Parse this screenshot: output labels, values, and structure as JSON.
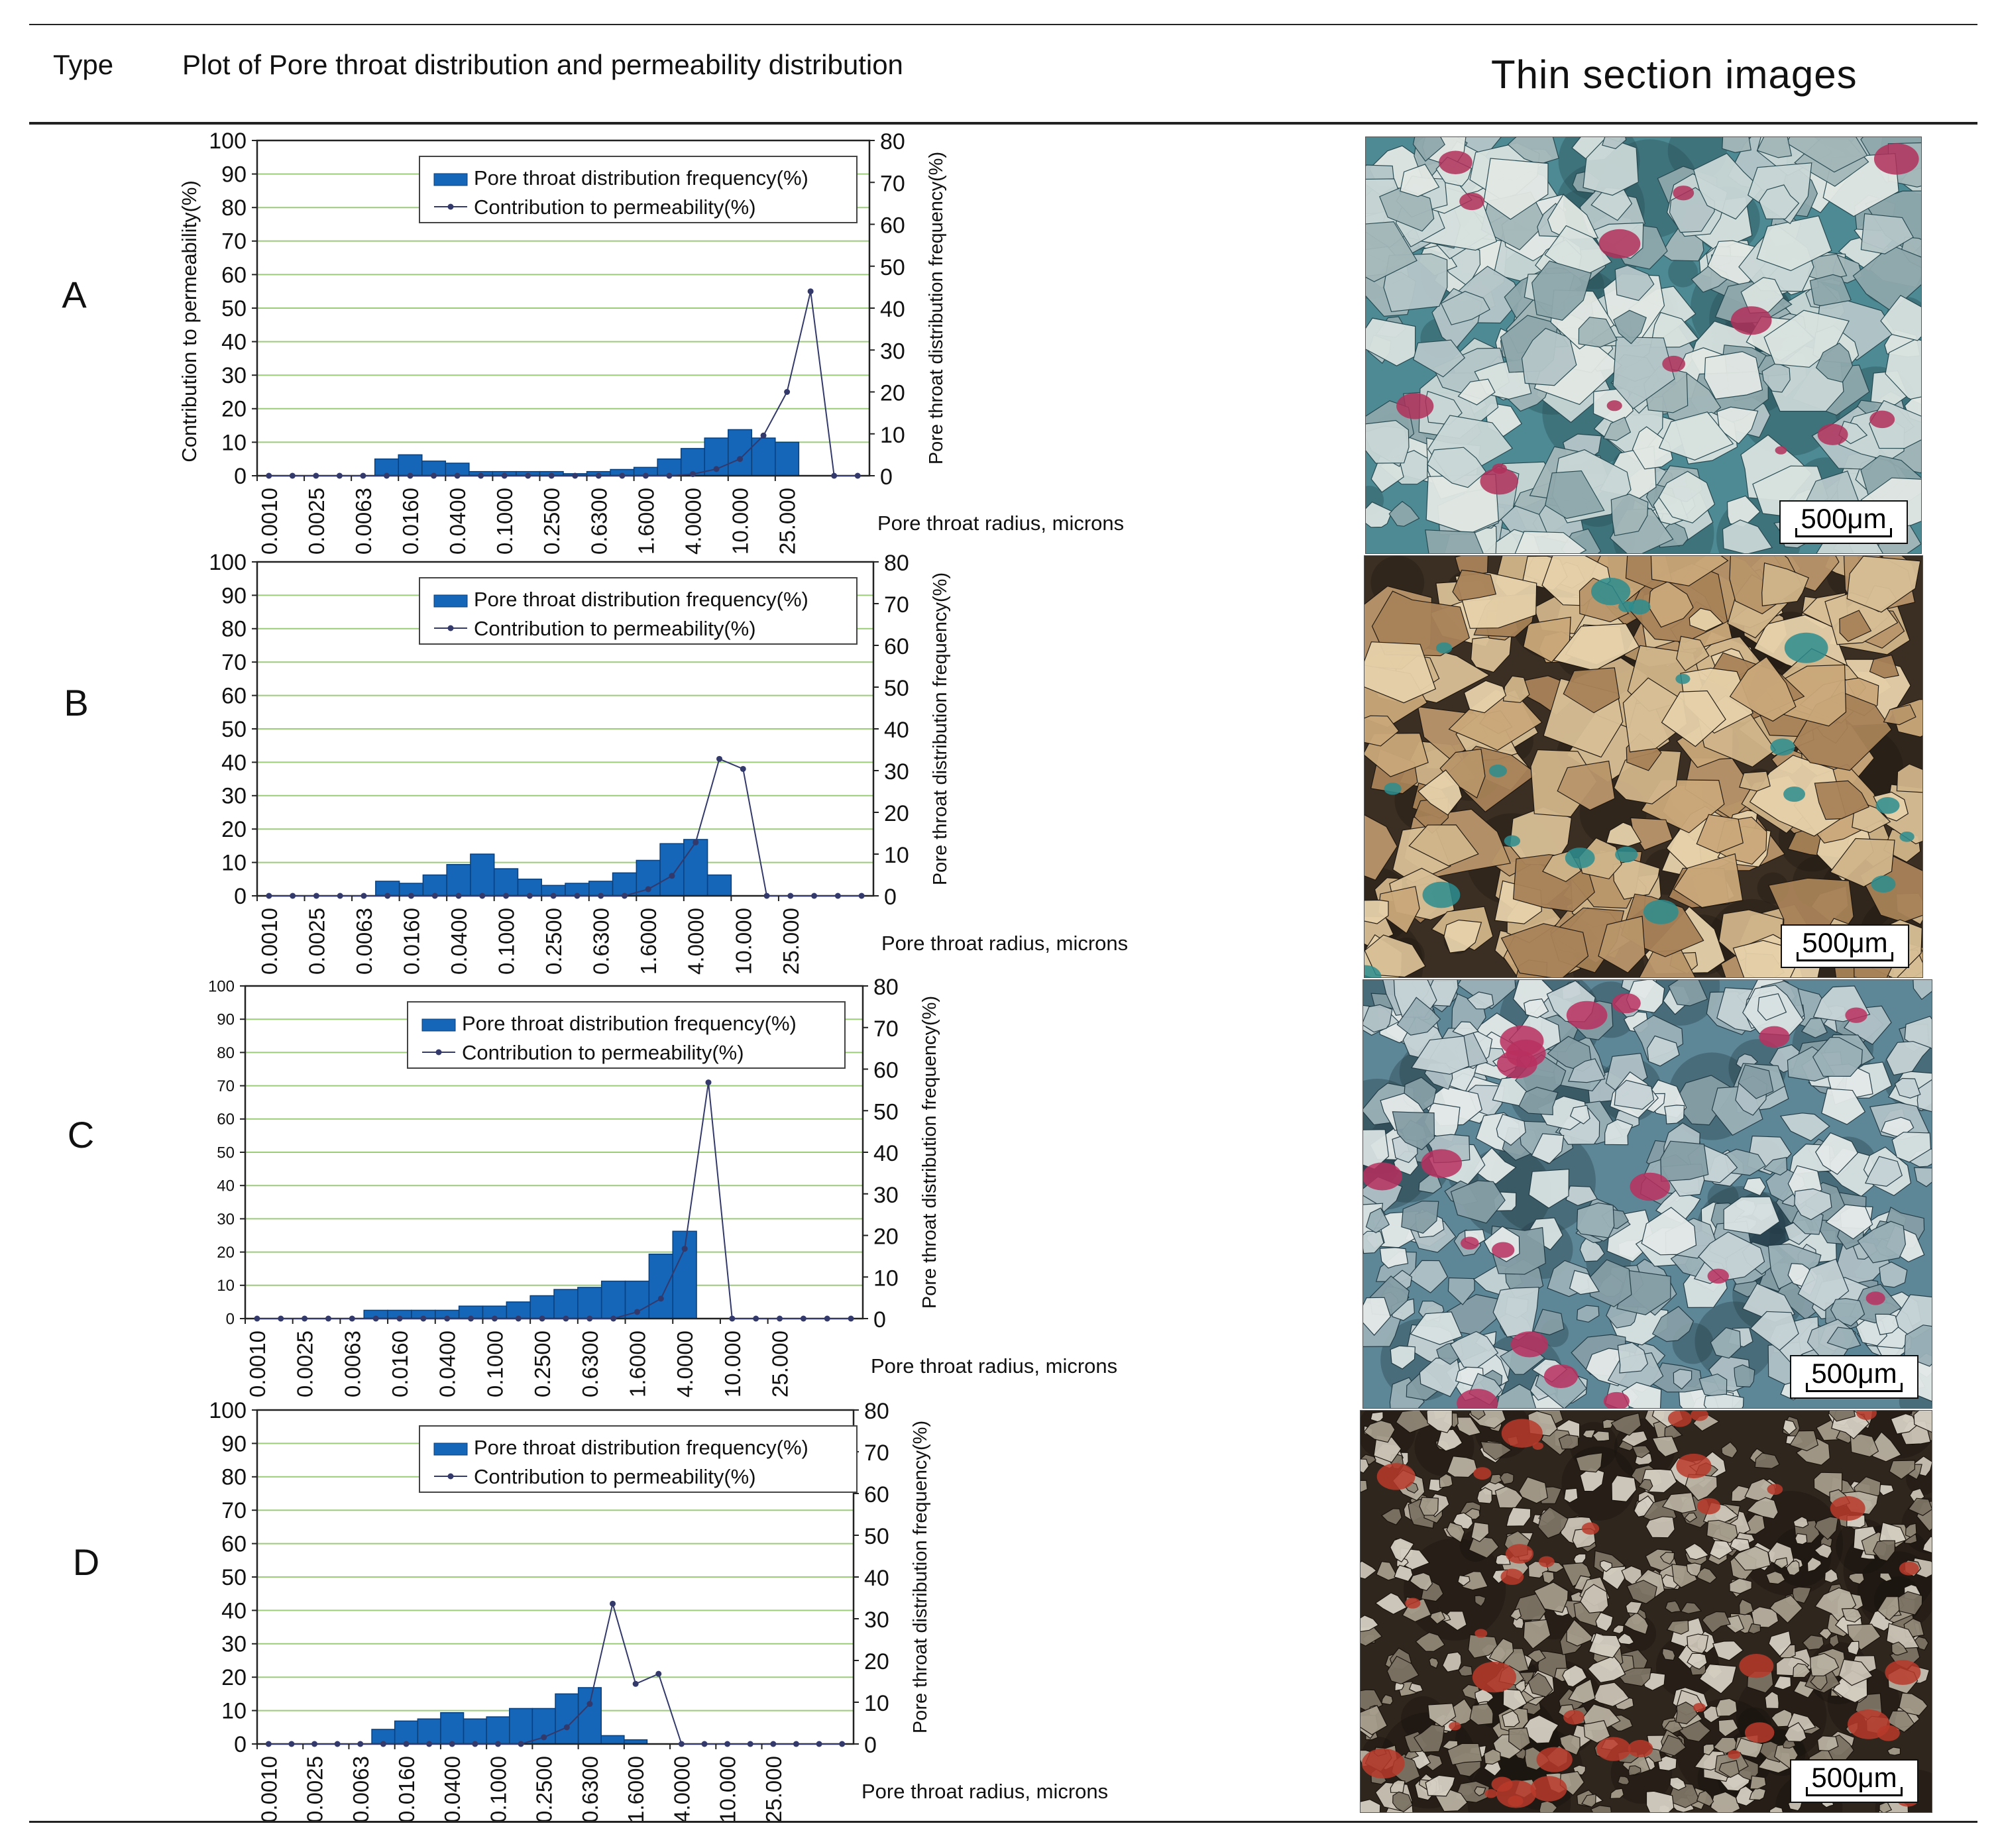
{
  "header": {
    "type_label": "Type",
    "plot_label": "Plot of Pore throat distribution and permeability distribution",
    "images_label": "Thin section images"
  },
  "colors": {
    "bar_fill": "#1565b8",
    "bar_stroke": "#0b3f7a",
    "line": "#333a6b",
    "grid": "#9ccc7a",
    "axis": "#222222"
  },
  "common": {
    "categories": [
      "0.0010",
      "0.0025",
      "0.0063",
      "0.0160",
      "0.0400",
      "0.1000",
      "0.2500",
      "0.6300",
      "1.6000",
      "4.0000",
      "10.000",
      "25.000"
    ],
    "xlabel": "Pore throat radius, microns",
    "ylabel_left": "Contribution to permeability(%)",
    "ylabel_right": "Pore throat distribution frequency(%)",
    "legend_bar": "Pore throat distribution frequency(%)",
    "legend_line": "Contribution to permeability(%)",
    "scale_label": "500μm"
  },
  "chart_data": [
    {
      "type": "bar",
      "panel_label": "A",
      "left_ticks": [
        "0",
        "10",
        "20",
        "30",
        "40",
        "50",
        "60",
        "70",
        "80",
        "90",
        "100"
      ],
      "right_ticks": [
        "0",
        "10",
        "20",
        "30",
        "40",
        "50",
        "60",
        "70",
        "80"
      ],
      "ylim_left": [
        0,
        100
      ],
      "ylim_right": [
        0,
        80
      ],
      "series": [
        {
          "name": "Pore throat distribution frequency(%)",
          "axis": "right",
          "values": [
            0,
            0,
            0,
            0,
            0,
            4,
            5,
            3.5,
            3,
            1,
            1,
            1,
            1,
            0.5,
            1,
            1.5,
            2,
            4,
            6.5,
            9,
            11,
            9,
            8,
            0,
            0,
            0
          ]
        },
        {
          "name": "Contribution to permeability(%)",
          "axis": "left",
          "values": [
            0,
            0,
            0,
            0,
            0,
            0,
            0,
            0,
            0,
            0,
            0,
            0,
            0,
            0,
            0,
            0,
            0,
            0,
            0.5,
            2,
            5,
            12,
            25,
            55,
            0,
            0
          ]
        }
      ]
    },
    {
      "type": "bar",
      "panel_label": "B",
      "left_ticks": [
        "0",
        "10",
        "20",
        "30",
        "40",
        "50",
        "60",
        "70",
        "80",
        "90",
        "100"
      ],
      "right_ticks": [
        "0",
        "10",
        "20",
        "30",
        "40",
        "50",
        "60",
        "70",
        "80"
      ],
      "ylim_left": [
        0,
        100
      ],
      "ylim_right": [
        0,
        80
      ],
      "series": [
        {
          "name": "Pore throat distribution frequency(%)",
          "axis": "right",
          "values": [
            0,
            0,
            0,
            0,
            0,
            3.5,
            3,
            5,
            7.5,
            10,
            6.5,
            4,
            2.5,
            3,
            3.5,
            5.5,
            8.5,
            12.5,
            13.5,
            5,
            0,
            0,
            0,
            0,
            0,
            0
          ]
        },
        {
          "name": "Contribution to permeability(%)",
          "axis": "left",
          "values": [
            0,
            0,
            0,
            0,
            0,
            0,
            0,
            0,
            0,
            0,
            0,
            0,
            0,
            0,
            0,
            0,
            2,
            6,
            16,
            41,
            38,
            0,
            0,
            0,
            0,
            0
          ]
        }
      ]
    },
    {
      "type": "bar",
      "panel_label": "C",
      "left_ticks": [
        "0",
        "10",
        "20",
        "30",
        "40",
        "50",
        "60",
        "70",
        "80",
        "90",
        "100"
      ],
      "right_ticks": [
        "0",
        "10",
        "20",
        "30",
        "40",
        "50",
        "60",
        "70",
        "80"
      ],
      "ylim_left": [
        0,
        100
      ],
      "ylim_right": [
        0,
        80
      ],
      "series": [
        {
          "name": "Pore throat distribution frequency(%)",
          "axis": "right",
          "values": [
            0,
            0,
            0,
            0,
            0,
            2,
            2,
            2,
            2,
            3,
            3,
            4,
            5.5,
            7,
            7.5,
            9,
            9,
            15.5,
            21,
            0,
            0,
            0,
            0,
            0,
            0,
            0
          ]
        },
        {
          "name": "Contribution to permeability(%)",
          "axis": "left",
          "values": [
            0,
            0,
            0,
            0,
            0,
            0,
            0,
            0,
            0,
            0,
            0,
            0,
            0,
            0,
            0,
            0,
            2,
            6,
            21,
            71,
            0,
            0,
            0,
            0,
            0,
            0
          ]
        }
      ]
    },
    {
      "type": "bar",
      "panel_label": "D",
      "left_ticks": [
        "0",
        "10",
        "20",
        "30",
        "40",
        "50",
        "60",
        "70",
        "80",
        "90",
        "100"
      ],
      "right_ticks": [
        "0",
        "10",
        "20",
        "30",
        "40",
        "50",
        "60",
        "70",
        "80"
      ],
      "ylim_left": [
        0,
        100
      ],
      "ylim_right": [
        0,
        80
      ],
      "series": [
        {
          "name": "Pore throat distribution frequency(%)",
          "axis": "right",
          "values": [
            0,
            0,
            0,
            0,
            0,
            3.5,
            5.5,
            6,
            7.5,
            6,
            6.5,
            8.5,
            8.5,
            12,
            13.5,
            2,
            1,
            0,
            0,
            0,
            0,
            0,
            0,
            0,
            0,
            0
          ]
        },
        {
          "name": "Contribution to permeability(%)",
          "axis": "left",
          "values": [
            0,
            0,
            0,
            0,
            0,
            0,
            0,
            0,
            0,
            0,
            0,
            0,
            2,
            5,
            12,
            42,
            18,
            21,
            0,
            0,
            0,
            0,
            0,
            0,
            0,
            0
          ]
        }
      ]
    }
  ]
}
